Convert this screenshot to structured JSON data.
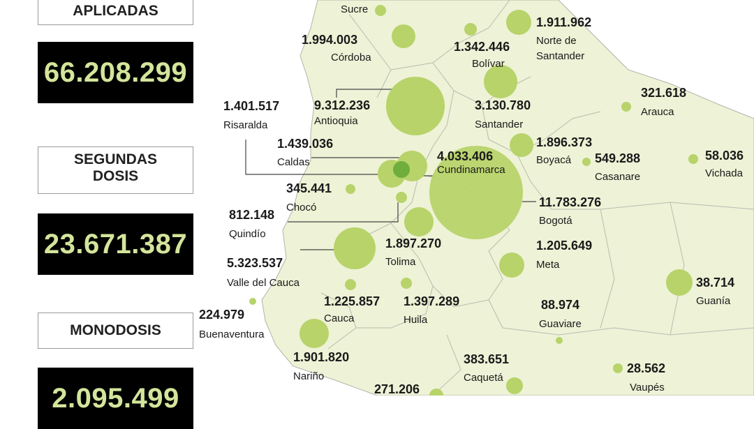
{
  "panel": {
    "aplicadas_label": "APLICADAS",
    "aplicadas_value": "66.208.299",
    "segundas_label_line1": "SEGUNDAS",
    "segundas_label_line2": "DOSIS",
    "segundas_value": "23.671.387",
    "monodosis_label": "MONODOSIS",
    "monodosis_value": "2.095.499"
  },
  "colors": {
    "bubble": "#b7d36a",
    "land": "#eef2d6",
    "border": "#9aa0a6",
    "value_text": "#d3e59b"
  },
  "regions": [
    {
      "id": "sucre",
      "name": "Sucre",
      "value": ""
    },
    {
      "id": "cordoba",
      "name": "Córdoba",
      "value": "1.994.003"
    },
    {
      "id": "bolivar",
      "name": "Bolívar",
      "value": "1.342.446"
    },
    {
      "id": "norte-santander",
      "name": "Norte de Santander",
      "value": "1.911.962"
    },
    {
      "id": "antioquia",
      "name": "Antioquia",
      "value": "9.312.236"
    },
    {
      "id": "santander",
      "name": "Santander",
      "value": "3.130.780"
    },
    {
      "id": "arauca",
      "name": "Arauca",
      "value": "321.618"
    },
    {
      "id": "risaralda",
      "name": "Risaralda",
      "value": "1.401.517"
    },
    {
      "id": "caldas",
      "name": "Caldas",
      "value": "1.439.036"
    },
    {
      "id": "cundinamarca",
      "name": "Cundinamarca",
      "value": "4.033.406"
    },
    {
      "id": "boyaca",
      "name": "Boyacá",
      "value": "1.896.373"
    },
    {
      "id": "casanare",
      "name": "Casanare",
      "value": "549.288"
    },
    {
      "id": "vichada",
      "name": "Vichada",
      "value": "58.036"
    },
    {
      "id": "choco",
      "name": "Chocó",
      "value": "345.441"
    },
    {
      "id": "bogota",
      "name": "Bogotá",
      "value": "11.783.276"
    },
    {
      "id": "quindio",
      "name": "Quindío",
      "value": "812.148"
    },
    {
      "id": "tolima",
      "name": "Tolima",
      "value": "1.897.270"
    },
    {
      "id": "meta",
      "name": "Meta",
      "value": "1.205.649"
    },
    {
      "id": "valle",
      "name": "Valle del Cauca",
      "value": "5.323.537"
    },
    {
      "id": "guania",
      "name": "Guanía",
      "value": "38.714"
    },
    {
      "id": "cauca",
      "name": "Cauca",
      "value": "1.225.857"
    },
    {
      "id": "huila",
      "name": "Huila",
      "value": "1.397.289"
    },
    {
      "id": "guaviare",
      "name": "Guaviare",
      "value": "88.974"
    },
    {
      "id": "buenaventura",
      "name": "Buenaventura",
      "value": "224.979"
    },
    {
      "id": "narino",
      "name": "Nariño",
      "value": "1.901.820"
    },
    {
      "id": "caqueta",
      "name": "Caquetá",
      "value": "383.651"
    },
    {
      "id": "vaupes",
      "name": "Vaupés",
      "value": "28.562"
    },
    {
      "id": "putumayo",
      "name": "",
      "value": "271.206"
    }
  ]
}
